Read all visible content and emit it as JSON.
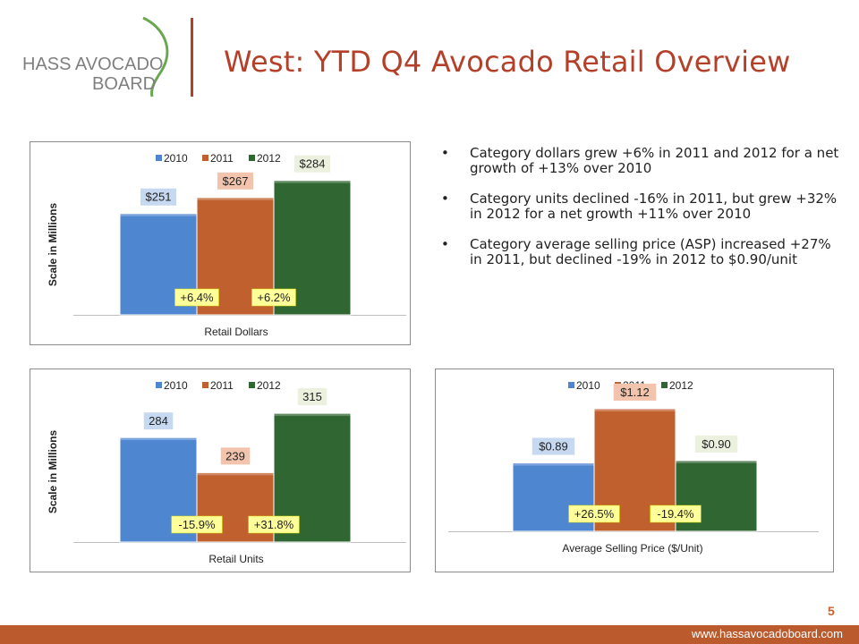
{
  "logo": {
    "line1": "HASS AVOCADO",
    "line2": "BOARD"
  },
  "title": "West: YTD Q4 Avocado Retail Overview",
  "bullets": [
    "Category dollars grew +6% in 2011 and 2012 for a net growth of +13% over 2010",
    "Category units declined -16% in 2011, but grew +32% in 2012 for a net growth +11% over 2010",
    "Category average selling price (ASP) increased +27% in 2011, but declined -19% in 2012 to $0.90/unit"
  ],
  "colors": {
    "y2010": "#4f86d0",
    "y2011": "#c0602e",
    "y2012": "#2f6631",
    "accent": "#b5402a"
  },
  "page_number": "5",
  "footer_url": "www.hassavocadoboard.com",
  "chart_data": [
    {
      "type": "bar",
      "categories": [
        "2010",
        "2011",
        "2012"
      ],
      "values": [
        251,
        267,
        284
      ],
      "data_labels": [
        "$251",
        "$267",
        "$284"
      ],
      "change_labels": [
        "+6.4%",
        "+6.2%"
      ],
      "xlabel": "Retail Dollars",
      "ylabel": "Scale in Millions",
      "ylim": [
        150,
        290
      ],
      "legend": "top"
    },
    {
      "type": "bar",
      "categories": [
        "2010",
        "2011",
        "2012"
      ],
      "values": [
        284,
        239,
        315
      ],
      "data_labels": [
        "284",
        "239",
        "315"
      ],
      "change_labels": [
        "-15.9%",
        "+31.8%"
      ],
      "xlabel": "Retail Units",
      "ylabel": "Scale in Millions",
      "ylim": [
        150,
        330
      ],
      "legend": "top"
    },
    {
      "type": "bar",
      "categories": [
        "2010",
        "2011",
        "2012"
      ],
      "values": [
        0.89,
        1.12,
        0.9
      ],
      "data_labels": [
        "$0.89",
        "$1.12",
        "$0.90"
      ],
      "change_labels": [
        "+26.5%",
        "-19.4%"
      ],
      "xlabel": "Average Selling Price ($/Unit)",
      "ylabel": "",
      "ylim": [
        0.6,
        1.15
      ],
      "legend": "top"
    }
  ]
}
